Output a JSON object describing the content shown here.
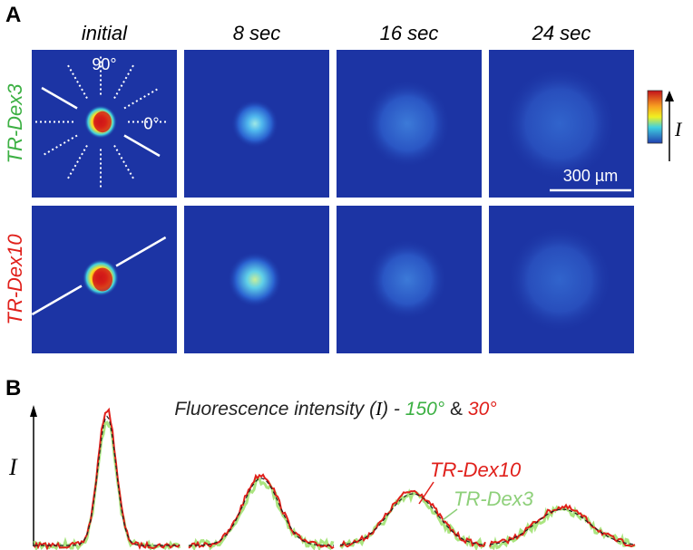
{
  "panel_a": {
    "label": "A",
    "columns": [
      "initial",
      "8 sec",
      "16 sec",
      "24 sec"
    ],
    "rows": [
      "TR-Dex3",
      "TR-Dex10"
    ],
    "angles": [
      "90°",
      "0°"
    ],
    "scale_bar": "300 µm",
    "colorbar_label": "I"
  },
  "panel_b": {
    "label": "B",
    "title": {
      "prefix": "Fluorescence intensity (",
      "symbol": "I",
      "mid": ") - ",
      "angle_1": "150°",
      "join": " & ",
      "angle_2": "30°"
    },
    "y_label": "I",
    "series": [
      "TR-Dex10",
      "TR-Dex3"
    ]
  }
}
